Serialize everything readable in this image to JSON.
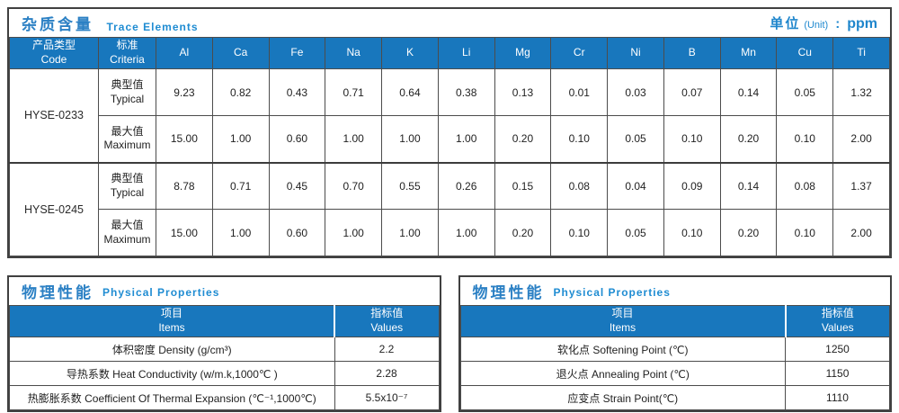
{
  "trace_table": {
    "title_zh": "杂质含量",
    "title_en": "Trace Elements",
    "unit_zh": "单位",
    "unit_paren": "(Unit)",
    "unit_colon": ":",
    "unit_value": "ppm",
    "code_header": {
      "zh": "产品类型",
      "en": "Code"
    },
    "criteria_header": {
      "zh": "标准",
      "en": "Criteria"
    },
    "elements": [
      "Al",
      "Ca",
      "Fe",
      "Na",
      "K",
      "Li",
      "Mg",
      "Cr",
      "Ni",
      "B",
      "Mn",
      "Cu",
      "Ti"
    ],
    "products": [
      {
        "code": "HYSE-0233",
        "rows": [
          {
            "label_zh": "典型值",
            "label_en": "Typical",
            "values": [
              "9.23",
              "0.82",
              "0.43",
              "0.71",
              "0.64",
              "0.38",
              "0.13",
              "0.01",
              "0.03",
              "0.07",
              "0.14",
              "0.05",
              "1.32"
            ]
          },
          {
            "label_zh": "最大值",
            "label_en": "Maximum",
            "values": [
              "15.00",
              "1.00",
              "0.60",
              "1.00",
              "1.00",
              "1.00",
              "0.20",
              "0.10",
              "0.05",
              "0.10",
              "0.20",
              "0.10",
              "2.00"
            ]
          }
        ]
      },
      {
        "code": "HYSE-0245",
        "rows": [
          {
            "label_zh": "典型值",
            "label_en": "Typical",
            "values": [
              "8.78",
              "0.71",
              "0.45",
              "0.70",
              "0.55",
              "0.26",
              "0.15",
              "0.08",
              "0.04",
              "0.09",
              "0.14",
              "0.08",
              "1.37"
            ]
          },
          {
            "label_zh": "最大值",
            "label_en": "Maximum",
            "values": [
              "15.00",
              "1.00",
              "0.60",
              "1.00",
              "1.00",
              "1.00",
              "0.20",
              "0.10",
              "0.05",
              "0.10",
              "0.20",
              "0.10",
              "2.00"
            ]
          }
        ]
      }
    ]
  },
  "physical_left": {
    "title_zh": "物理性能",
    "title_en": "Physical Properties",
    "header": {
      "items_zh": "项目",
      "items_en": "Items",
      "values_zh": "指标值",
      "values_en": "Values"
    },
    "rows": [
      {
        "item": "体积密度 Density (g/cm³)",
        "value": "2.2"
      },
      {
        "item": "导热系数 Heat Conductivity (w/m.k,1000℃ )",
        "value": "2.28"
      },
      {
        "item": "热膨胀系数 Coefficient Of Thermal Expansion (℃⁻¹,1000℃)",
        "value": "5.5x10⁻⁷"
      }
    ]
  },
  "physical_right": {
    "title_zh": "物理性能",
    "title_en": "Physical Properties",
    "header": {
      "items_zh": "项目",
      "items_en": "Items",
      "values_zh": "指标值",
      "values_en": "Values"
    },
    "rows": [
      {
        "item": "软化点 Softening Point (℃)",
        "value": "1250"
      },
      {
        "item": "退火点 Annealing Point (℃)",
        "value": "1150"
      },
      {
        "item": "应变点 Strain Point(℃)",
        "value": "1110"
      }
    ]
  }
}
